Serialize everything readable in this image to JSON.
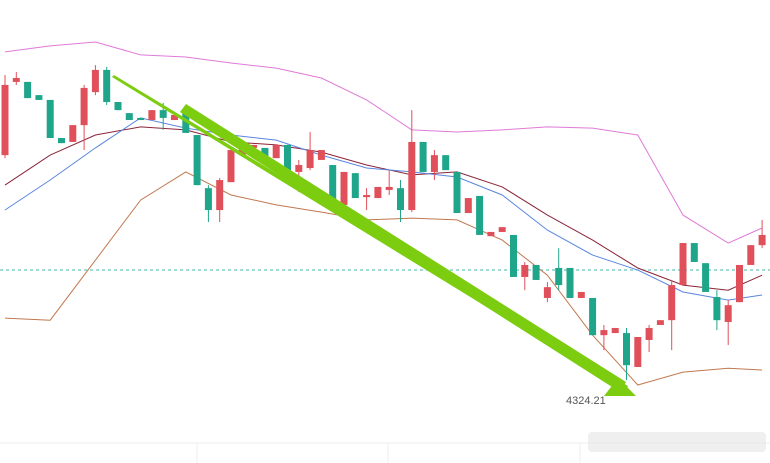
{
  "chart_data": {
    "type": "candlestick",
    "annotation": "4324.21",
    "ylim": [
      4296.6,
      4450.9
    ],
    "up_color": "#e0505a",
    "down_color": "#1fa58a",
    "price_line": {
      "value": 4360.9,
      "color": "#3cb8a8"
    },
    "open": [
      4399.2,
      4423.6,
      4423.6,
      4419.2,
      4417.6,
      4404.9,
      4403.6,
      4409.2,
      4420.2,
      4427.6,
      4416.9,
      4413.2,
      4411.6,
      4410.9,
      4414.2,
      4410.9,
      4413.2,
      4405.9,
      4388.2,
      4380.9,
      4390.2,
      4399.2,
      4401.6,
      4401.6,
      4398.2,
      4402.6,
      4393.6,
      4394.9,
      4397.6,
      4395.9,
      4382.6,
      4393.2,
      4385.2,
      4384.9,
      4387.6,
      4388.2,
      4380.9,
      4403.6,
      4393.6,
      4399.2,
      4393.6,
      4379.9,
      4385.6,
      4372.2,
      4373.6,
      4372.6,
      4358.6,
      4362.6,
      4351.6,
      4361.6,
      4361.6,
      4351.6,
      4351.6,
      4339.2,
      4339.9,
      4339.9,
      4328.6,
      4337.6,
      4342.6,
      4344.2,
      4355.9,
      4369.9,
      4363.2,
      4351.9,
      4343.6,
      4350.2,
      4362.6,
      4369.2
    ],
    "close": [
      4422.6,
      4424.9,
      4418.2,
      4417.6,
      4404.9,
      4403.2,
      4409.2,
      4421.6,
      4427.6,
      4416.9,
      4414.2,
      4410.9,
      4410.9,
      4414.2,
      4411.6,
      4412.6,
      4406.6,
      4389.2,
      4380.9,
      4390.9,
      4400.9,
      4401.6,
      4402.6,
      4398.2,
      4402.6,
      4392.6,
      4395.9,
      4400.9,
      4400.9,
      4380.9,
      4393.6,
      4384.9,
      4385.9,
      4388.6,
      4388.6,
      4380.9,
      4403.6,
      4393.6,
      4399.2,
      4394.2,
      4379.9,
      4384.9,
      4372.6,
      4373.6,
      4375.2,
      4358.6,
      4362.6,
      4357.6,
      4355.2,
      4355.9,
      4351.6,
      4353.6,
      4339.2,
      4340.9,
      4341.6,
      4329.2,
      4338.6,
      4341.6,
      4344.2,
      4355.9,
      4369.9,
      4363.6,
      4353.6,
      4344.2,
      4349.2,
      4362.6,
      4369.2,
      4372.6
    ],
    "high": [
      4425.9,
      4426.9,
      4423.6,
      4419.2,
      4417.6,
      4404.9,
      4409.2,
      4422.6,
      4429.2,
      4428.6,
      4416.9,
      4413.2,
      4411.6,
      4414.2,
      4416.6,
      4412.6,
      4413.2,
      4405.9,
      4389.2,
      4391.6,
      4400.9,
      4401.6,
      4402.6,
      4401.6,
      4402.6,
      4402.6,
      4397.6,
      4406.9,
      4400.9,
      4395.9,
      4393.6,
      4393.2,
      4388.2,
      4388.6,
      4394.2,
      4390.9,
      4414.2,
      4403.6,
      4400.9,
      4399.2,
      4393.6,
      4384.9,
      4385.6,
      4373.6,
      4375.2,
      4372.6,
      4363.6,
      4362.6,
      4356.9,
      4368.2,
      4361.6,
      4353.6,
      4351.6,
      4342.6,
      4341.6,
      4341.6,
      4338.6,
      4342.6,
      4344.2,
      4357.6,
      4369.9,
      4369.9,
      4363.2,
      4354.2,
      4350.9,
      4362.6,
      4369.2,
      4377.6
    ],
    "low": [
      4398.2,
      4422.6,
      4418.2,
      4417.6,
      4404.9,
      4403.2,
      4403.6,
      4400.9,
      4419.2,
      4415.9,
      4414.2,
      4410.9,
      4410.9,
      4410.9,
      4407.6,
      4410.9,
      4406.6,
      4389.2,
      4376.9,
      4376.9,
      4390.2,
      4399.2,
      4401.6,
      4398.2,
      4398.2,
      4392.6,
      4386.9,
      4394.2,
      4397.6,
      4380.9,
      4382.6,
      4384.9,
      4380.9,
      4384.9,
      4385.9,
      4376.9,
      4380.2,
      4393.6,
      4390.9,
      4394.2,
      4379.9,
      4379.9,
      4372.6,
      4372.2,
      4373.6,
      4358.6,
      4354.2,
      4357.6,
      4350.2,
      4354.2,
      4351.6,
      4351.6,
      4339.2,
      4334.2,
      4339.9,
      4324.21,
      4328.6,
      4333.6,
      4342.6,
      4334.2,
      4355.9,
      4363.6,
      4353.6,
      4340.9,
      4335.9,
      4350.2,
      4362.6,
      4368.2
    ],
    "overlays": [
      {
        "color": "#e07ad8",
        "x": [
          0,
          4,
          8,
          12,
          16,
          20,
          24,
          28,
          32,
          36,
          40,
          44,
          48,
          52,
          56,
          60,
          64,
          67
        ],
        "values": [
          4433.6,
          4435.6,
          4436.9,
          4432.6,
          4431.9,
          4429.9,
          4428.2,
          4424.9,
          4417.6,
          4407.6,
          4406.9,
          4407.6,
          4408.6,
          4408.2,
          4405.9,
          4379.2,
          4369.9,
          4374.9
        ]
      },
      {
        "color": "#c07850",
        "x": [
          0,
          4,
          8,
          12,
          16,
          20,
          24,
          28,
          32,
          36,
          40,
          44,
          48,
          52,
          56,
          60,
          64,
          67
        ],
        "values": [
          4344.9,
          4344.2,
          4364.2,
          4384.2,
          4393.6,
          4385.9,
          4382.6,
          4380.2,
          4377.6,
          4378.2,
          4377.6,
          4370.9,
          4359.2,
          4339.2,
          4322.6,
          4326.9,
          4328.2,
          4327.6
        ]
      },
      {
        "color": "#8a2438",
        "x": [
          0,
          4,
          8,
          12,
          16,
          20,
          24,
          28,
          32,
          36,
          40,
          44,
          48,
          52,
          56,
          60,
          64,
          67
        ],
        "values": [
          4389.2,
          4399.2,
          4405.9,
          4408.6,
          4407.6,
          4403.6,
          4402.6,
          4400.2,
          4395.9,
          4392.6,
          4393.6,
          4388.6,
          4379.2,
          4370.9,
          4361.6,
          4355.9,
          4354.2,
          4359.2
        ]
      },
      {
        "color": "#5a86e0",
        "x": [
          0,
          4,
          8,
          12,
          16,
          20,
          24,
          28,
          32,
          36,
          40,
          44,
          48,
          52,
          56,
          60,
          64,
          67
        ],
        "values": [
          4380.9,
          4390.9,
          4401.6,
          4411.6,
          4408.2,
          4405.9,
          4404.2,
          4399.2,
          4394.9,
          4393.6,
          4391.9,
          4385.9,
          4374.2,
          4365.9,
          4360.9,
          4353.6,
          4350.9,
          4352.6
        ]
      }
    ]
  }
}
